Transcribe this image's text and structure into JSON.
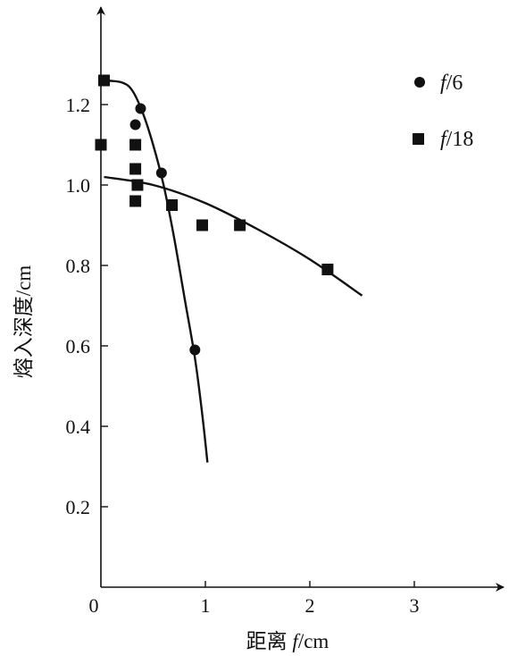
{
  "chart_data": {
    "type": "scatter",
    "xlabel_prefix": "距离 ",
    "xlabel_var": "f",
    "xlabel_unit": "/cm",
    "ylabel": "熔入深度/cm",
    "xlim": [
      0,
      3.5
    ],
    "ylim": [
      0,
      1.3
    ],
    "x_ticks": [
      0,
      1,
      2,
      3
    ],
    "y_ticks": [
      0.2,
      0.4,
      0.6,
      0.8,
      1.0,
      1.2
    ],
    "x_tick_labels": [
      "0",
      "1",
      "2",
      "3"
    ],
    "y_tick_labels": [
      "0.2",
      "0.4",
      "0.6",
      "0.8",
      "1.0",
      "1.2"
    ],
    "grid": false,
    "legend_position": "top-right",
    "series": [
      {
        "name_var": "f",
        "name_suffix": "/6",
        "marker": "circle",
        "points": [
          [
            0.38,
            1.19
          ],
          [
            0.33,
            1.15
          ],
          [
            0.58,
            1.03
          ],
          [
            0.9,
            0.59
          ]
        ],
        "curve": [
          [
            0.03,
            1.26
          ],
          [
            0.2,
            1.255
          ],
          [
            0.3,
            1.235
          ],
          [
            0.4,
            1.18
          ],
          [
            0.5,
            1.1
          ],
          [
            0.6,
            1.0
          ],
          [
            0.7,
            0.87
          ],
          [
            0.8,
            0.72
          ],
          [
            0.9,
            0.57
          ],
          [
            0.97,
            0.43
          ],
          [
            1.02,
            0.31
          ]
        ]
      },
      {
        "name_var": "f",
        "name_suffix": "/18",
        "marker": "square",
        "points": [
          [
            0.03,
            1.26
          ],
          [
            0.0,
            1.1
          ],
          [
            0.33,
            1.1
          ],
          [
            0.33,
            1.04
          ],
          [
            0.35,
            1.0
          ],
          [
            0.33,
            0.96
          ],
          [
            0.68,
            0.95
          ],
          [
            0.97,
            0.9
          ],
          [
            1.33,
            0.9
          ],
          [
            2.17,
            0.79
          ]
        ],
        "curve": [
          [
            0.03,
            1.02
          ],
          [
            0.5,
            1.0
          ],
          [
            1.0,
            0.955
          ],
          [
            1.5,
            0.89
          ],
          [
            2.0,
            0.815
          ],
          [
            2.5,
            0.725
          ]
        ]
      }
    ]
  }
}
